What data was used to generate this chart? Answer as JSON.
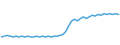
{
  "x": [
    0,
    1,
    2,
    3,
    4,
    5,
    6,
    7,
    8,
    9,
    10,
    11,
    12,
    13,
    14,
    15,
    16,
    17,
    18,
    19,
    20,
    21,
    22,
    23,
    24,
    25,
    26,
    27,
    28,
    29,
    30,
    31,
    32,
    33,
    34,
    35,
    36,
    37,
    38,
    39,
    40
  ],
  "y": [
    2,
    3,
    4,
    3,
    2,
    3,
    2,
    3,
    2,
    3,
    2,
    2,
    3,
    2,
    3,
    2,
    3,
    2,
    3,
    3,
    4,
    5,
    9,
    16,
    22,
    24,
    22,
    25,
    27,
    25,
    27,
    29,
    28,
    30,
    29,
    31,
    30,
    31,
    30,
    31,
    30
  ],
  "line_color": "#4da6d9",
  "bg_color": "#ffffff",
  "linewidth": 1.1,
  "ylim_min": -8,
  "ylim_max": 48
}
